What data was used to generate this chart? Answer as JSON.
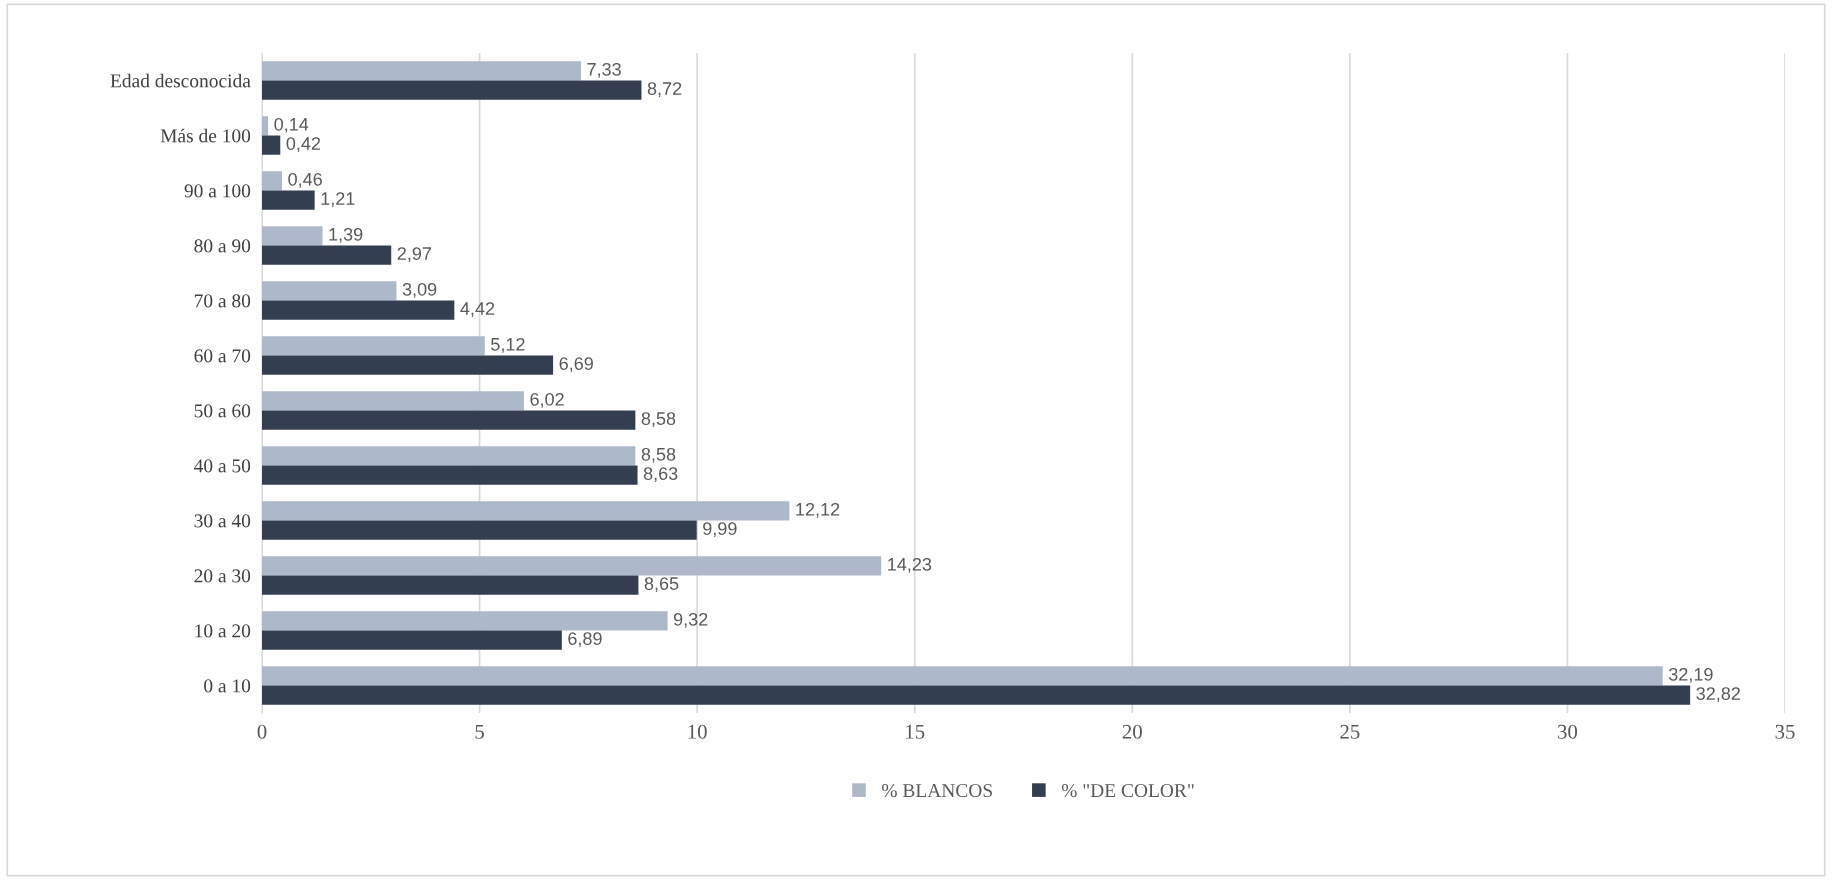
{
  "chart_data": {
    "type": "bar",
    "orientation": "horizontal",
    "categories": [
      "Edad desconocida",
      "Más de 100",
      "90 a 100",
      "80 a 90",
      "70 a 80",
      "60 a 70",
      "50 a 60",
      "40 a 50",
      "30 a 40",
      "20 a 30",
      "10 a 20",
      "0 a 10"
    ],
    "series": [
      {
        "name": "% BLANCOS",
        "color": "#adb9ca",
        "values": [
          7.33,
          0.14,
          0.46,
          1.39,
          3.09,
          5.12,
          6.02,
          8.58,
          12.12,
          14.23,
          9.32,
          32.19
        ],
        "value_labels": [
          "7,33",
          "0,14",
          "0,46",
          "1,39",
          "3,09",
          "5,12",
          "6,02",
          "8,58",
          "12,12",
          "14,23",
          "9,32",
          "32,19"
        ]
      },
      {
        "name": "% \"DE COLOR\"",
        "color": "#333f50",
        "values": [
          8.72,
          0.42,
          1.21,
          2.97,
          4.42,
          6.69,
          8.58,
          8.63,
          9.99,
          8.65,
          6.89,
          32.82
        ],
        "value_labels": [
          "8,72",
          "0,42",
          "1,21",
          "2,97",
          "4,42",
          "6,69",
          "8,58",
          "8,63",
          "9,99",
          "8,65",
          "6,89",
          "32,82"
        ]
      }
    ],
    "xlim": [
      0,
      35
    ],
    "xticks": [
      0,
      5,
      10,
      15,
      20,
      25,
      30,
      35
    ],
    "grid": "x",
    "legend": "bottom"
  }
}
